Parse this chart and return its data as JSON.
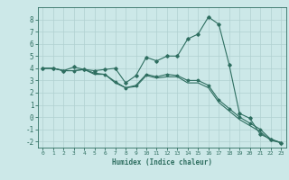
{
  "xlabel": "Humidex (Indice chaleur)",
  "ylabel": "",
  "background_color": "#cce8e8",
  "grid_color": "#b0d0d0",
  "line_color": "#2e6e60",
  "x_values": [
    0,
    1,
    2,
    3,
    4,
    5,
    6,
    7,
    8,
    9,
    10,
    11,
    12,
    13,
    14,
    15,
    16,
    17,
    18,
    19,
    20,
    21,
    22,
    23
  ],
  "series1": [
    4.0,
    4.0,
    3.8,
    4.1,
    3.9,
    3.8,
    3.9,
    4.0,
    2.8,
    3.4,
    4.9,
    4.6,
    5.0,
    5.0,
    6.4,
    6.8,
    8.2,
    7.6,
    4.3,
    0.3,
    -0.1,
    -1.4,
    -1.8,
    -2.1
  ],
  "series2": [
    4.0,
    4.0,
    3.8,
    3.8,
    3.9,
    3.6,
    3.5,
    2.9,
    2.4,
    2.6,
    3.5,
    3.3,
    3.5,
    3.4,
    3.0,
    3.0,
    2.6,
    1.4,
    0.7,
    0.0,
    -0.5,
    -1.0,
    -1.8,
    -2.1
  ],
  "series3": [
    4.0,
    4.0,
    3.8,
    3.8,
    3.9,
    3.5,
    3.5,
    2.8,
    2.4,
    2.5,
    3.4,
    3.2,
    3.3,
    3.3,
    2.8,
    2.8,
    2.4,
    1.2,
    0.5,
    -0.2,
    -0.7,
    -1.2,
    -1.9,
    -2.1
  ],
  "ylim": [
    -2.5,
    9.0
  ],
  "xlim": [
    -0.5,
    23.5
  ],
  "yticks": [
    -2,
    -1,
    0,
    1,
    2,
    3,
    4,
    5,
    6,
    7,
    8
  ],
  "xticks": [
    0,
    1,
    2,
    3,
    4,
    5,
    6,
    7,
    8,
    9,
    10,
    11,
    12,
    13,
    14,
    15,
    16,
    17,
    18,
    19,
    20,
    21,
    22,
    23
  ],
  "figsize": [
    3.2,
    2.0
  ],
  "dpi": 100
}
